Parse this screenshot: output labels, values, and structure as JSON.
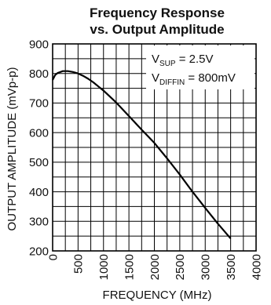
{
  "chart_data": {
    "type": "line",
    "title": "Frequency Response",
    "subtitle": "vs. Output Amplitude",
    "xlabel": "FREQUENCY (MHz)",
    "ylabel": "OUTPUT AMPLITUDE (mVp-p)",
    "xlim": [
      0,
      4000
    ],
    "ylim": [
      200,
      900
    ],
    "xticks": [
      0,
      500,
      1000,
      1500,
      2000,
      2500,
      3000,
      3500,
      4000
    ],
    "yticks": [
      200,
      300,
      400,
      500,
      600,
      700,
      800,
      900
    ],
    "x_minor_step": 250,
    "y_minor_step": 50,
    "grid": true,
    "annotations": [
      {
        "main": "V",
        "sub": "SUP",
        "rest": " = 2.5V"
      },
      {
        "main": "V",
        "sub": "DIFFIN",
        "rest": " = 800mV"
      }
    ],
    "series": [
      {
        "x": [
          0,
          50,
          100,
          200,
          300,
          400,
          500,
          600,
          700,
          800,
          900,
          1000,
          1250,
          1500,
          1750,
          2000,
          2250,
          2500,
          2750,
          3000,
          3250,
          3500
        ],
        "y": [
          778,
          795,
          802,
          808,
          808,
          805,
          800,
          792,
          782,
          770,
          756,
          742,
          702,
          656,
          610,
          565,
          513,
          458,
          400,
          345,
          292,
          242
        ]
      }
    ]
  }
}
